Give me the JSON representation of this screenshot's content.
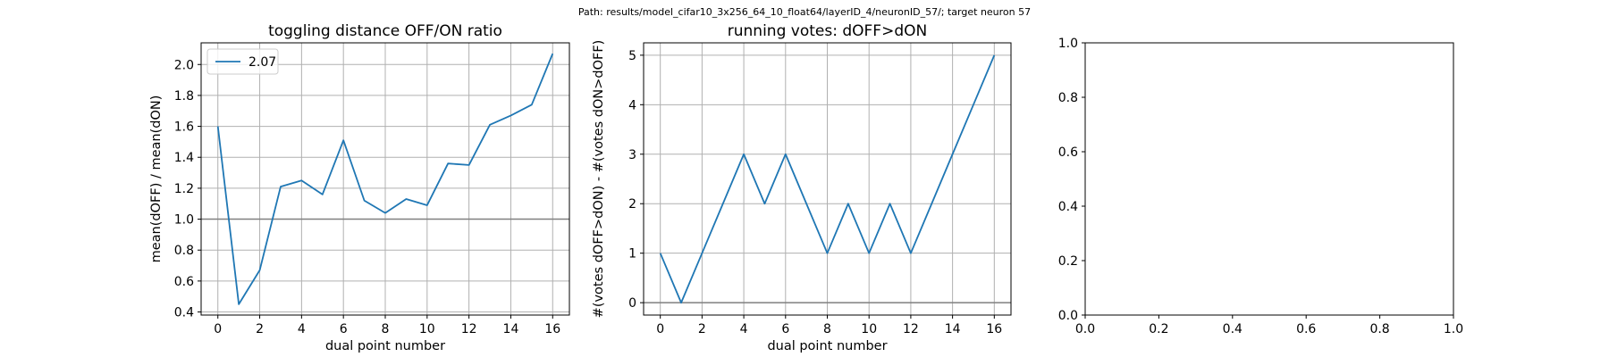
{
  "suptitle": "Path: results/model_cifar10_3x256_64_10_float64/layerID_4/neuronID_57/; target neuron 57",
  "chart_data": [
    {
      "type": "line",
      "title": "toggling distance OFF/ON ratio",
      "xlabel": "dual point number",
      "ylabel": "mean(dOFF) / mean(dON)",
      "xlim": [
        -0.8,
        16.8
      ],
      "ylim": [
        0.38,
        2.14
      ],
      "xticks": [
        0,
        2,
        4,
        6,
        8,
        10,
        12,
        14,
        16
      ],
      "xtick_labels": [
        "0",
        "2",
        "4",
        "6",
        "8",
        "10",
        "12",
        "14",
        "16"
      ],
      "yticks": [
        0.4,
        0.6,
        0.8,
        1.0,
        1.2,
        1.4,
        1.6,
        1.8,
        2.0
      ],
      "ytick_labels": [
        "0.4",
        "0.6",
        "0.8",
        "1.0",
        "1.2",
        "1.4",
        "1.6",
        "1.8",
        "2.0"
      ],
      "grid": true,
      "hline": 1.0,
      "legend": {
        "placement": "upper-left",
        "entries": [
          "2.07"
        ]
      },
      "series": [
        {
          "name": "2.07",
          "color": "#1f77b4",
          "x": [
            0,
            1,
            2,
            3,
            4,
            5,
            6,
            7,
            8,
            9,
            10,
            11,
            12,
            13,
            14,
            15,
            16
          ],
          "y": [
            1.6,
            0.45,
            0.67,
            1.21,
            1.25,
            1.16,
            1.51,
            1.12,
            1.04,
            1.13,
            1.09,
            1.36,
            1.35,
            1.61,
            1.67,
            1.74,
            2.07
          ]
        }
      ]
    },
    {
      "type": "line",
      "title": "running votes: dOFF>dON",
      "xlabel": "dual point number",
      "ylabel": "#(votes dOFF>dON) - #(votes dON>dOFF)",
      "xlim": [
        -0.8,
        16.8
      ],
      "ylim": [
        -0.25,
        5.25
      ],
      "xticks": [
        0,
        2,
        4,
        6,
        8,
        10,
        12,
        14,
        16
      ],
      "xtick_labels": [
        "0",
        "2",
        "4",
        "6",
        "8",
        "10",
        "12",
        "14",
        "16"
      ],
      "yticks": [
        0,
        1,
        2,
        3,
        4,
        5
      ],
      "ytick_labels": [
        "0",
        "1",
        "2",
        "3",
        "4",
        "5"
      ],
      "grid": true,
      "hline": 0,
      "series": [
        {
          "color": "#1f77b4",
          "x": [
            0,
            1,
            2,
            3,
            4,
            5,
            6,
            7,
            8,
            9,
            10,
            11,
            12,
            13,
            14,
            15,
            16
          ],
          "y": [
            1,
            0,
            1,
            2,
            3,
            2,
            3,
            2,
            1,
            2,
            1,
            2,
            1,
            2,
            3,
            4,
            5
          ]
        }
      ]
    },
    {
      "type": "line",
      "title": "",
      "xlabel": "",
      "ylabel": "",
      "xlim": [
        0,
        1
      ],
      "ylim": [
        0,
        1
      ],
      "xticks": [
        0,
        0.2,
        0.4,
        0.6,
        0.8,
        1.0
      ],
      "xtick_labels": [
        "0.0",
        "0.2",
        "0.4",
        "0.6",
        "0.8",
        "1.0"
      ],
      "yticks": [
        0,
        0.2,
        0.4,
        0.6,
        0.8,
        1.0
      ],
      "ytick_labels": [
        "0.0",
        "0.2",
        "0.4",
        "0.6",
        "0.8",
        "1.0"
      ],
      "grid": false,
      "series": []
    }
  ]
}
